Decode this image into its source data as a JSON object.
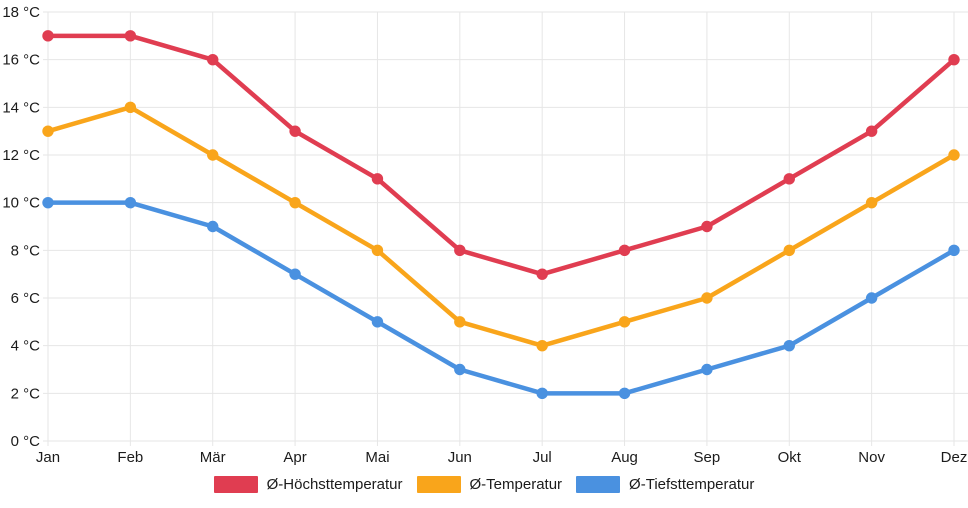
{
  "chart_data": {
    "type": "line",
    "categories": [
      "Jan",
      "Feb",
      "Mär",
      "Apr",
      "Mai",
      "Jun",
      "Jul",
      "Aug",
      "Sep",
      "Okt",
      "Nov",
      "Dez"
    ],
    "series": [
      {
        "name": "Ø-Höchsttemperatur",
        "color": "#e03d51",
        "values": [
          17,
          17,
          16,
          13,
          11,
          8,
          7,
          8,
          9,
          11,
          13,
          16
        ]
      },
      {
        "name": "Ø-Temperatur",
        "color": "#f9a51b",
        "values": [
          13,
          14,
          12,
          10,
          8,
          5,
          4,
          5,
          6,
          8,
          10,
          12
        ]
      },
      {
        "name": "Ø-Tiefsttemperatur",
        "color": "#4a91e0",
        "values": [
          10,
          10,
          9,
          7,
          5,
          3,
          2,
          2,
          3,
          4,
          6,
          8
        ]
      }
    ],
    "y_axis": {
      "min": 0,
      "max": 18,
      "step": 2,
      "unit": "°C",
      "tick_format": "{value} °C"
    },
    "x_axis": {
      "label": "",
      "tick_labels": [
        "Jan",
        "Feb",
        "Mär",
        "Apr",
        "Mai",
        "Jun",
        "Jul",
        "Aug",
        "Sep",
        "Okt",
        "Nov",
        "Dez"
      ]
    },
    "title": "",
    "grid": true,
    "grid_color": "#e6e6e6",
    "text_color": "#1b1b1b",
    "legend_position": "bottom",
    "marker": "circle"
  }
}
